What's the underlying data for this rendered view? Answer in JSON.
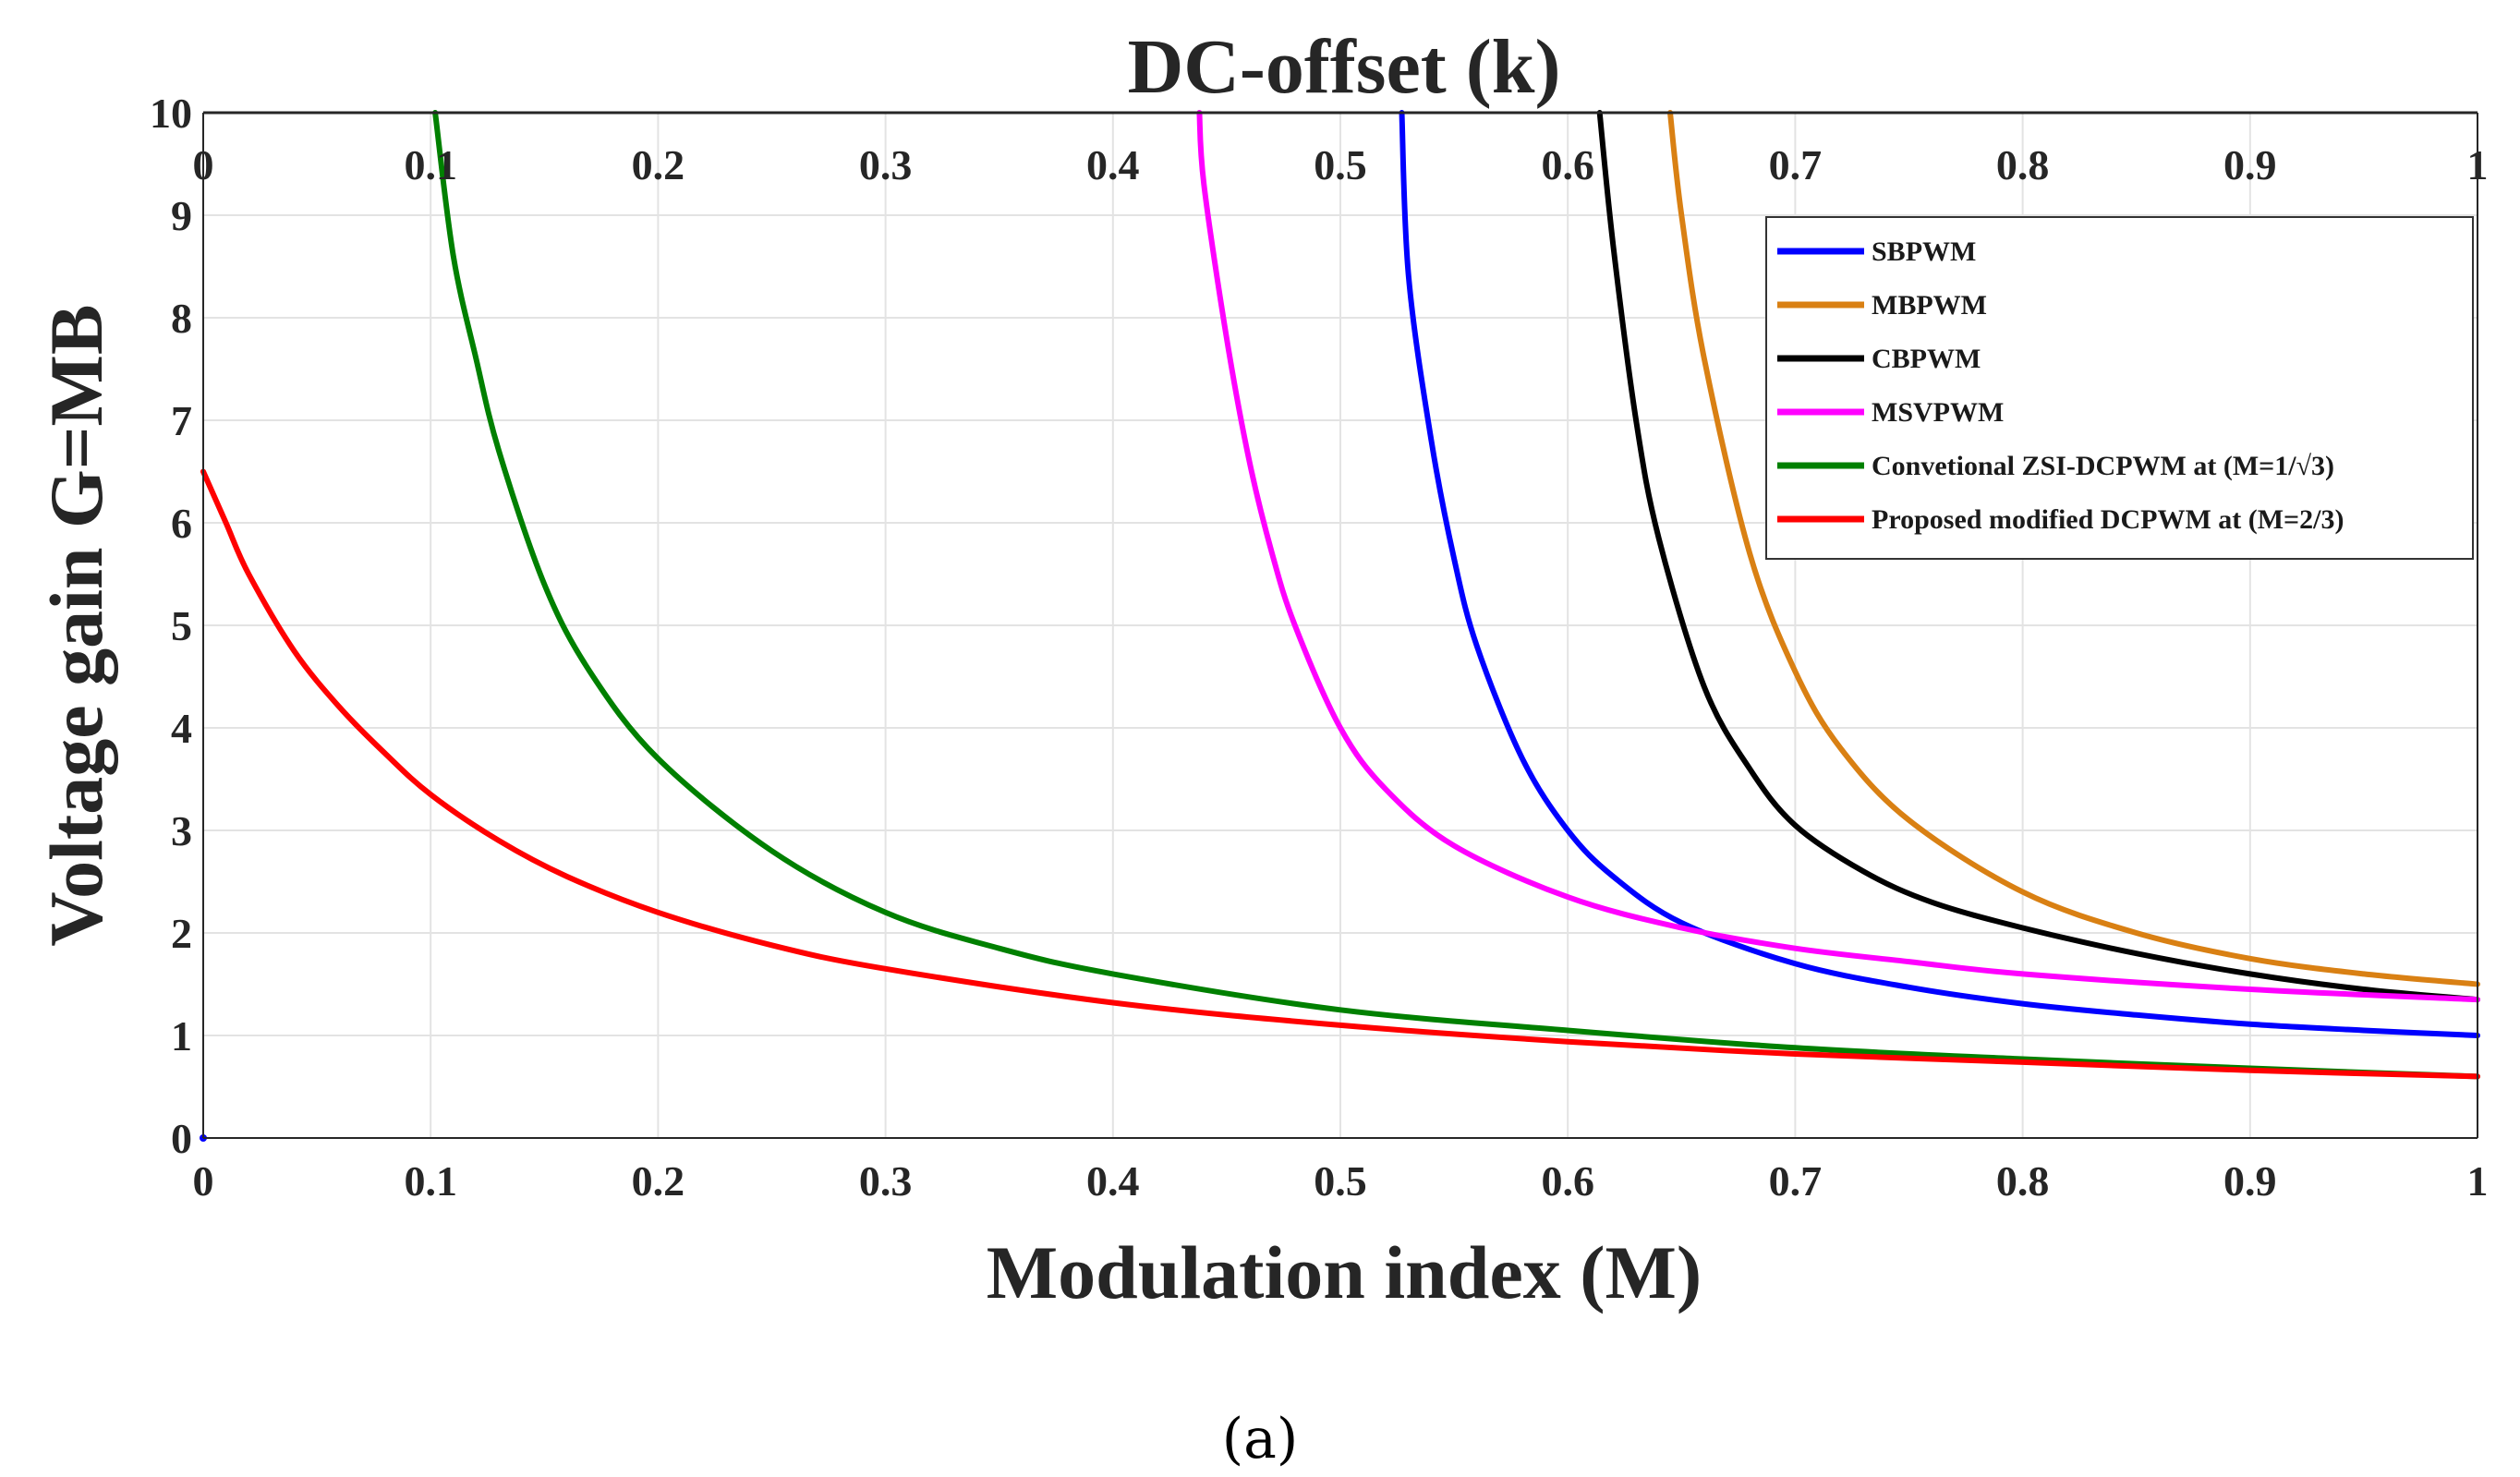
{
  "chart_data": {
    "type": "line",
    "title": "DC-offset (k)",
    "xlabel": "Modulation index (M)",
    "ylabel": "Voltage gain G=MB",
    "caption": "(a)",
    "xlim": [
      0,
      1
    ],
    "ylim": [
      0,
      10
    ],
    "x_ticks": [
      "0",
      "0.1",
      "0.2",
      "0.3",
      "0.4",
      "0.5",
      "0.6",
      "0.7",
      "0.8",
      "0.9",
      "1"
    ],
    "x_top_ticks": [
      "0",
      "0.1",
      "0.2",
      "0.3",
      "0.4",
      "0.5",
      "0.6",
      "0.7",
      "0.8",
      "0.9",
      "1"
    ],
    "y_ticks": [
      "0",
      "1",
      "2",
      "3",
      "4",
      "5",
      "6",
      "7",
      "8",
      "9",
      "10"
    ],
    "grid": true,
    "legend_position": "top-right",
    "series": [
      {
        "name": "SBPWM",
        "color": "#0000ff",
        "x": [
          0.527,
          0.53,
          0.54,
          0.55,
          0.56,
          0.58,
          0.6,
          0.62,
          0.65,
          0.7,
          0.75,
          0.8,
          0.85,
          0.9,
          0.95,
          1.0
        ],
        "y": [
          10,
          8.4,
          6.8,
          5.65,
          4.8,
          3.7,
          3.0,
          2.55,
          2.1,
          1.7,
          1.47,
          1.31,
          1.2,
          1.11,
          1.05,
          1.0
        ]
      },
      {
        "name": "MBPWM",
        "color": "#d98013",
        "x": [
          0.645,
          0.65,
          0.66,
          0.68,
          0.7,
          0.72,
          0.75,
          0.8,
          0.85,
          0.9,
          0.95,
          1.0
        ],
        "y": [
          10,
          9.0,
          7.6,
          5.7,
          4.55,
          3.8,
          3.1,
          2.4,
          2.0,
          1.75,
          1.6,
          1.5
        ]
      },
      {
        "name": "CBPWM",
        "color": "#000000",
        "x": [
          0.614,
          0.62,
          0.63,
          0.64,
          0.66,
          0.68,
          0.7,
          0.73,
          0.76,
          0.8,
          0.85,
          0.9,
          0.95,
          1.0
        ],
        "y": [
          10,
          8.7,
          7.0,
          5.85,
          4.4,
          3.6,
          3.05,
          2.6,
          2.3,
          2.05,
          1.8,
          1.6,
          1.45,
          1.35
        ]
      },
      {
        "name": "MSVPWM",
        "color": "#ff00ff",
        "x": [
          0.438,
          0.44,
          0.45,
          0.46,
          0.47,
          0.48,
          0.5,
          0.52,
          0.55,
          0.6,
          0.65,
          0.7,
          0.75,
          0.8,
          0.9,
          1.0
        ],
        "y": [
          10,
          9.3,
          7.8,
          6.6,
          5.7,
          5.0,
          4.0,
          3.4,
          2.85,
          2.35,
          2.05,
          1.85,
          1.72,
          1.6,
          1.45,
          1.35
        ]
      },
      {
        "name": "Convetional ZSI-DCPWM at (M=1/√3)",
        "color": "#008000",
        "x": [
          0.102,
          0.11,
          0.12,
          0.13,
          0.15,
          0.17,
          0.2,
          0.25,
          0.3,
          0.35,
          0.4,
          0.5,
          0.6,
          0.7,
          0.8,
          0.9,
          1.0
        ],
        "y": [
          10,
          8.6,
          7.6,
          6.7,
          5.4,
          4.55,
          3.7,
          2.8,
          2.2,
          1.85,
          1.6,
          1.25,
          1.05,
          0.88,
          0.77,
          0.68,
          0.6
        ]
      },
      {
        "name": "Proposed modified DCPWM at (M=2/3)",
        "color": "#ff0000",
        "x": [
          0.0,
          0.01,
          0.02,
          0.04,
          0.06,
          0.08,
          0.1,
          0.13,
          0.16,
          0.2,
          0.25,
          0.3,
          0.4,
          0.5,
          0.6,
          0.7,
          0.8,
          0.9,
          1.0
        ],
        "y": [
          6.5,
          6.0,
          5.5,
          4.75,
          4.2,
          3.75,
          3.35,
          2.9,
          2.55,
          2.2,
          1.88,
          1.65,
          1.32,
          1.1,
          0.94,
          0.82,
          0.74,
          0.66,
          0.6
        ]
      }
    ]
  }
}
